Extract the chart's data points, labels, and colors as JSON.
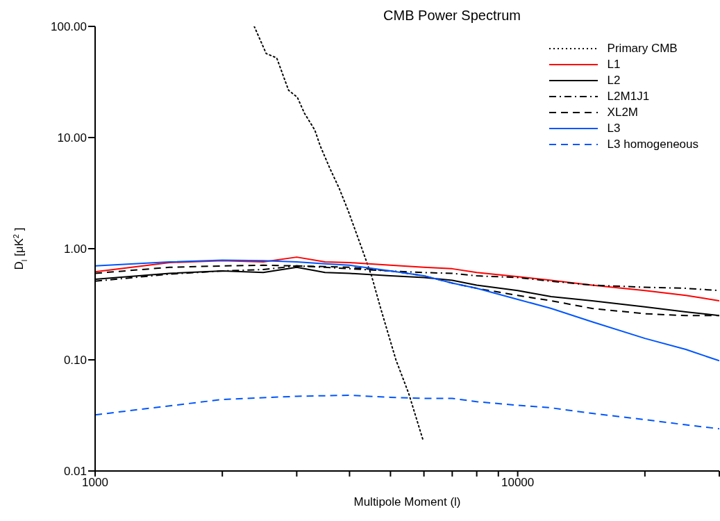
{
  "chart_data": {
    "type": "line",
    "title": "CMB Power Spectrum",
    "xlabel": "Multipole Moment (l)",
    "ylabel": "D$_{l}$ [μK$^{2}$]",
    "log": "xy",
    "xlim": [
      1000,
      30000
    ],
    "ylim": [
      0.01,
      100
    ],
    "xticks": [
      1000,
      {
        "value": 2000,
        "label": null
      },
      {
        "value": 3000,
        "label": null
      },
      {
        "value": 4000,
        "label": null
      },
      {
        "value": 5000,
        "label": null
      },
      {
        "value": 6000,
        "label": null
      },
      {
        "value": 7000,
        "label": null
      },
      {
        "value": 8000,
        "label": null
      },
      {
        "value": 9000,
        "label": null
      },
      10000,
      {
        "value": 20000,
        "label": null
      },
      {
        "value": 30000,
        "label": null
      }
    ],
    "yticks": [
      {
        "value": 0.01,
        "label": "0.01"
      },
      {
        "value": 0.1,
        "label": "0.10"
      },
      {
        "value": 1,
        "label": "1.00"
      },
      {
        "value": 10,
        "label": "10.00"
      },
      {
        "value": 100,
        "label": "100.00"
      }
    ],
    "legend": "top right",
    "marker": "none",
    "series": [
      {
        "name": "Primary CMB",
        "color": "#000000",
        "line_style": "dotted",
        "x": [
          2380,
          2540,
          2690,
          2870,
          3010,
          3130,
          3310,
          3410,
          3600,
          3780,
          3970,
          4280,
          4510,
          4740,
          5150,
          5520,
          5970
        ],
        "values": [
          100,
          57,
          52,
          26.6,
          23,
          16.5,
          11.7,
          8.4,
          5.2,
          3.5,
          2.2,
          1.0,
          0.57,
          0.29,
          0.1,
          0.05,
          0.019
        ]
      },
      {
        "name": "L1",
        "color": "#ff0000",
        "line_style": "solid",
        "x": [
          1000,
          1500,
          2000,
          2500,
          3000,
          3500,
          4000,
          5000,
          6000,
          7000,
          8000,
          10000,
          12000,
          15000,
          20000,
          25000,
          30000
        ],
        "values": [
          0.62,
          0.75,
          0.78,
          0.76,
          0.84,
          0.76,
          0.75,
          0.71,
          0.68,
          0.66,
          0.61,
          0.56,
          0.52,
          0.47,
          0.42,
          0.38,
          0.34
        ]
      },
      {
        "name": "L2",
        "color": "#000000",
        "line_style": "solid",
        "x": [
          1000,
          1500,
          2000,
          2500,
          3000,
          3500,
          4000,
          5000,
          6000,
          7000,
          8000,
          10000,
          12000,
          15000,
          20000,
          25000,
          30000
        ],
        "values": [
          0.53,
          0.6,
          0.63,
          0.61,
          0.68,
          0.61,
          0.6,
          0.57,
          0.55,
          0.52,
          0.47,
          0.42,
          0.37,
          0.34,
          0.3,
          0.27,
          0.25
        ]
      },
      {
        "name": "L2M1J1",
        "color": "#000000",
        "line_style": "dashdot",
        "x": [
          1000,
          1500,
          2000,
          2500,
          3000,
          3500,
          4000,
          5000,
          6000,
          7000,
          8000,
          10000,
          12000,
          15000,
          20000,
          25000,
          30000
        ],
        "values": [
          0.51,
          0.59,
          0.63,
          0.65,
          0.7,
          0.68,
          0.66,
          0.63,
          0.61,
          0.6,
          0.57,
          0.55,
          0.51,
          0.47,
          0.45,
          0.44,
          0.42
        ]
      },
      {
        "name": "XL2M",
        "color": "#000000",
        "line_style": "dashed",
        "x": [
          1000,
          1500,
          2000,
          2500,
          3000,
          3500,
          4000,
          5000,
          6000,
          7000,
          8000,
          10000,
          12000,
          15000,
          20000,
          25000,
          30000
        ],
        "values": [
          0.6,
          0.68,
          0.7,
          0.71,
          0.7,
          0.69,
          0.68,
          0.63,
          0.57,
          0.49,
          0.44,
          0.38,
          0.34,
          0.29,
          0.26,
          0.25,
          0.25
        ]
      },
      {
        "name": "L3",
        "color": "#0055ff",
        "line_style": "solid",
        "x": [
          1000,
          1500,
          2000,
          2500,
          3000,
          3500,
          4000,
          5000,
          6000,
          7000,
          8000,
          10000,
          12000,
          15000,
          20000,
          25000,
          30000
        ],
        "values": [
          0.7,
          0.76,
          0.79,
          0.78,
          0.76,
          0.73,
          0.71,
          0.63,
          0.57,
          0.49,
          0.44,
          0.35,
          0.29,
          0.22,
          0.156,
          0.124,
          0.098
        ]
      },
      {
        "name": "L3 homogeneous",
        "color": "#0055ff",
        "line_style": "dashed",
        "x": [
          1000,
          2000,
          3000,
          4000,
          5000,
          6000,
          7000,
          8000,
          10000,
          12000,
          15000,
          20000,
          25000,
          30000
        ],
        "values": [
          0.032,
          0.044,
          0.047,
          0.048,
          0.046,
          0.045,
          0.045,
          0.042,
          0.039,
          0.037,
          0.033,
          0.029,
          0.026,
          0.024
        ]
      }
    ]
  }
}
